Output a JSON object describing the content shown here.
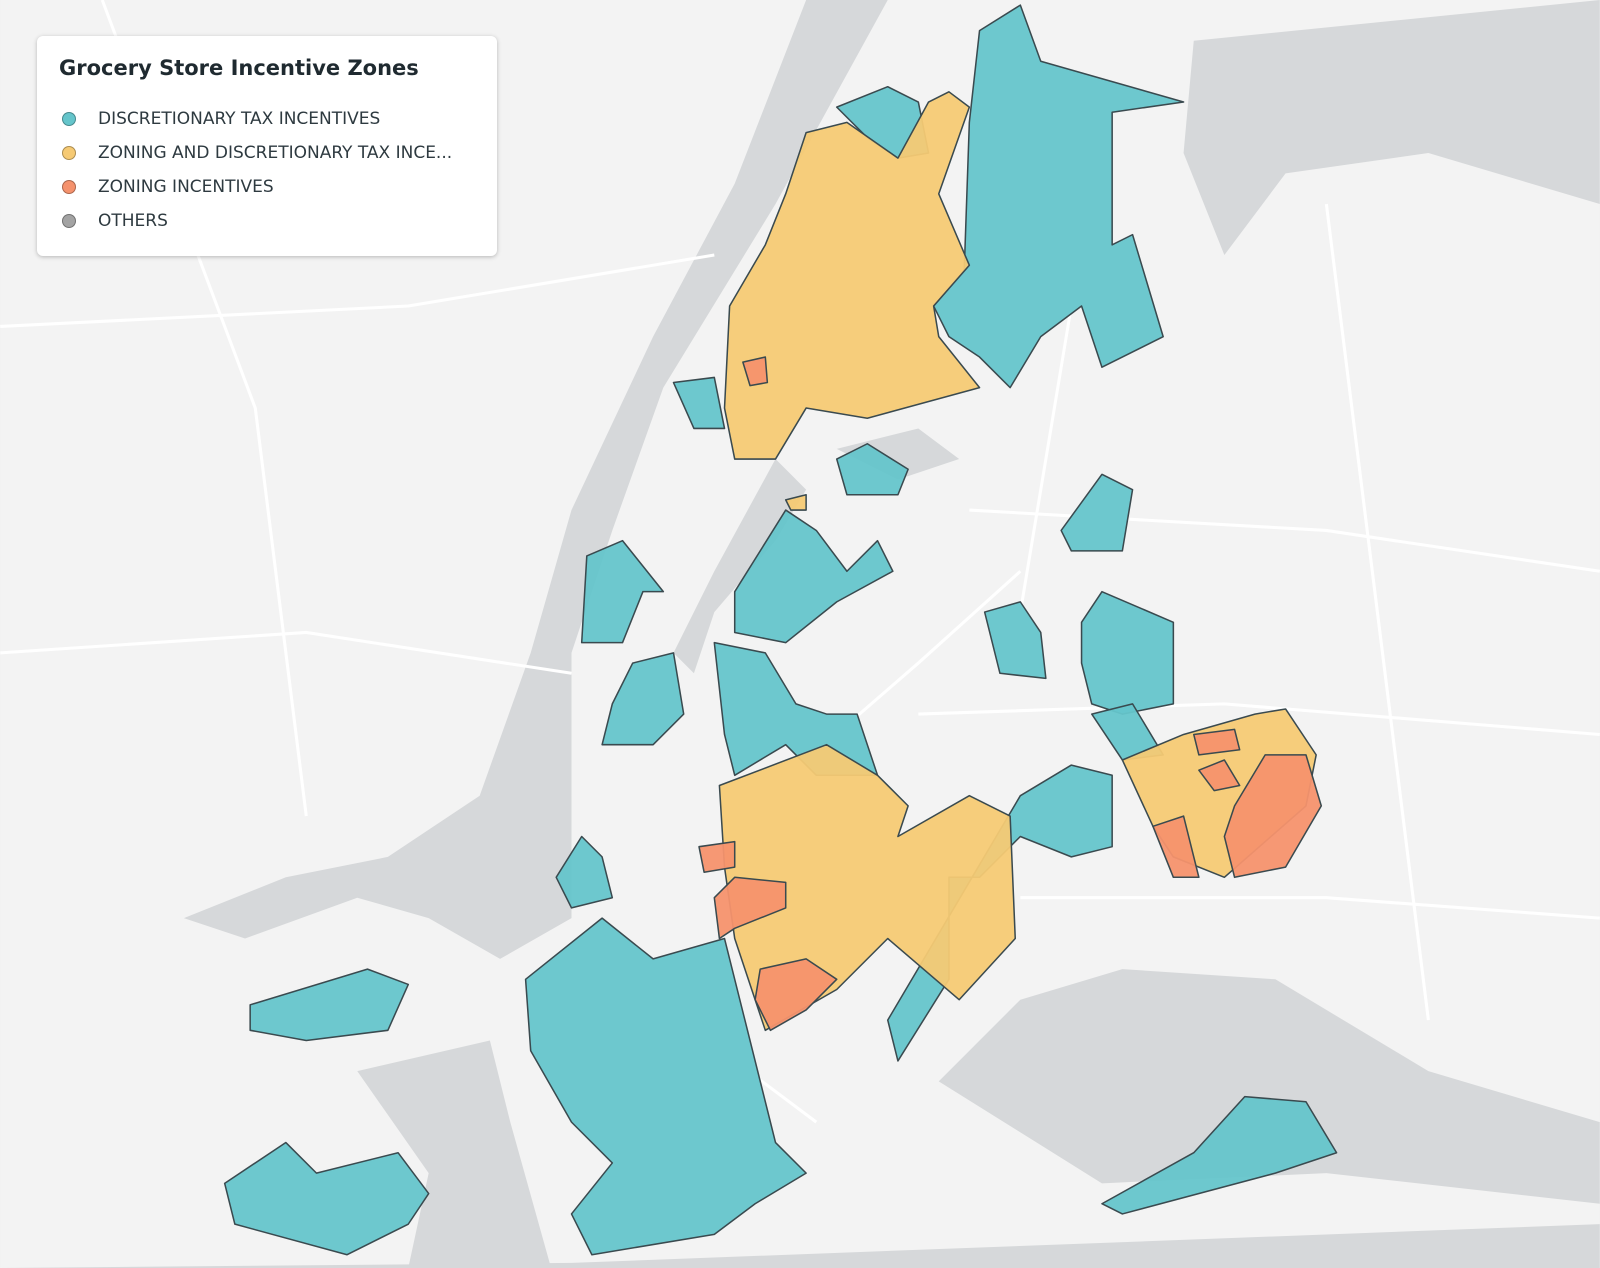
{
  "legend": {
    "title": "Grocery Store Incentive Zones",
    "items": [
      {
        "label": "DISCRETIONARY TAX INCENTIVES",
        "color": "#65c5cb"
      },
      {
        "label": "ZONING AND DISCRETIONARY TAX INCE...",
        "color": "#f6ca74"
      },
      {
        "label": "ZONING INCENTIVES",
        "color": "#f5926d"
      },
      {
        "label": "OTHERS",
        "color": "#a3a3a3"
      }
    ]
  }
}
